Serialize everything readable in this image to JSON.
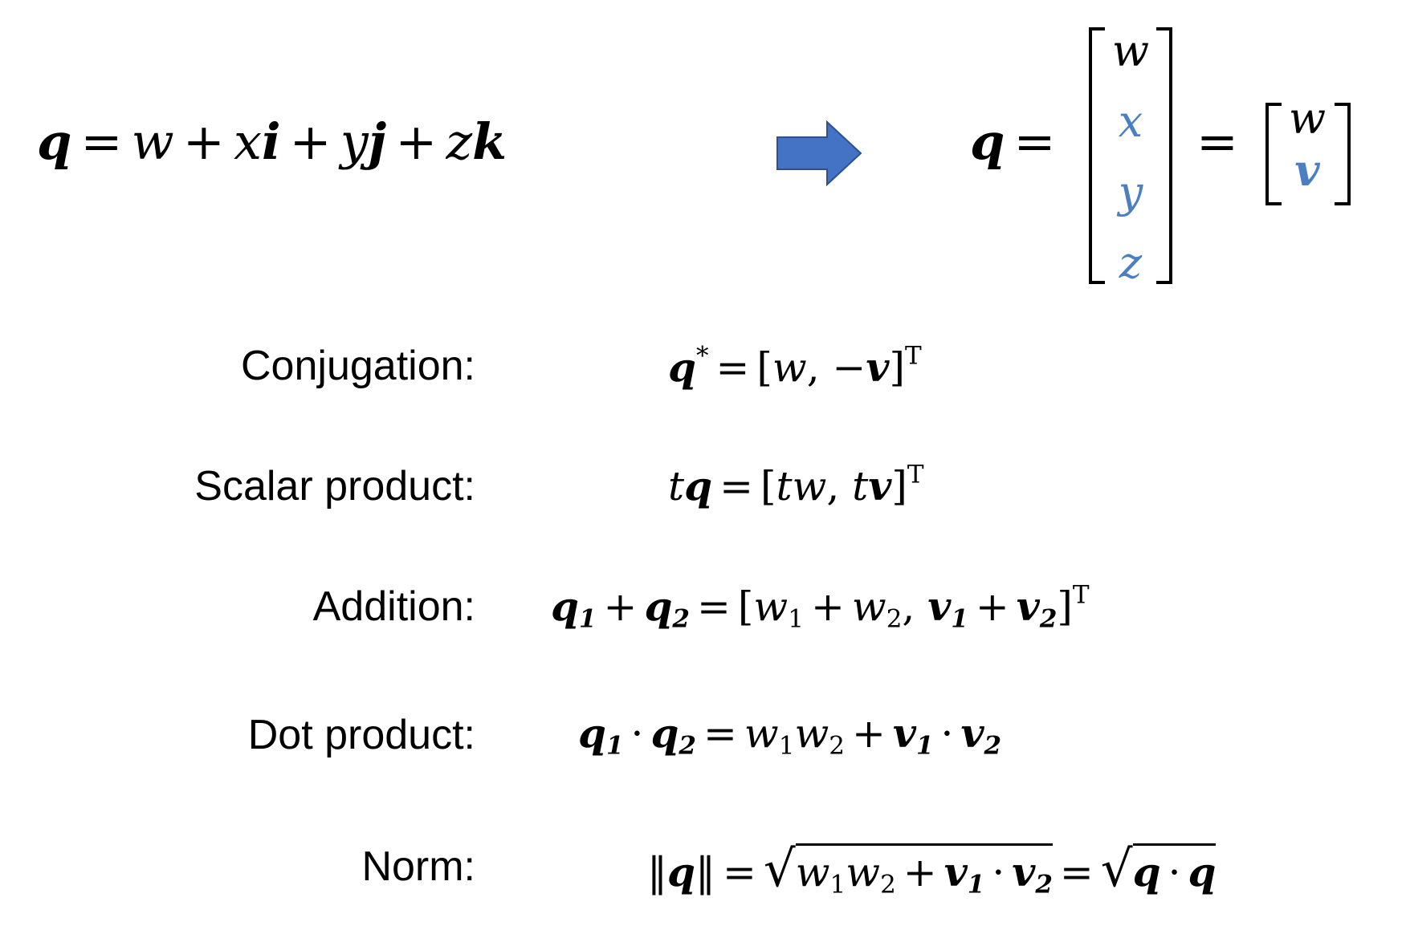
{
  "colors": {
    "accent_blue": "#4a7fc4",
    "arrow_fill": "#4472c4"
  },
  "definition": {
    "lhs": "q",
    "equals": "=",
    "terms": [
      "w",
      "+",
      "x",
      "i",
      "+",
      "y",
      "j",
      "+",
      "z",
      "k"
    ]
  },
  "arrow": {
    "icon": "right-arrow-icon"
  },
  "vector_form": {
    "lhs": "q",
    "equals1": "=",
    "column": [
      "w",
      "x",
      "y",
      "z"
    ],
    "equals2": "=",
    "column2": [
      "w",
      "v"
    ]
  },
  "operations": [
    {
      "label": "Conjugation:"
    },
    {
      "label": "Scalar product:"
    },
    {
      "label": "Addition:"
    },
    {
      "label": "Dot product:"
    },
    {
      "label": "Norm:"
    }
  ]
}
